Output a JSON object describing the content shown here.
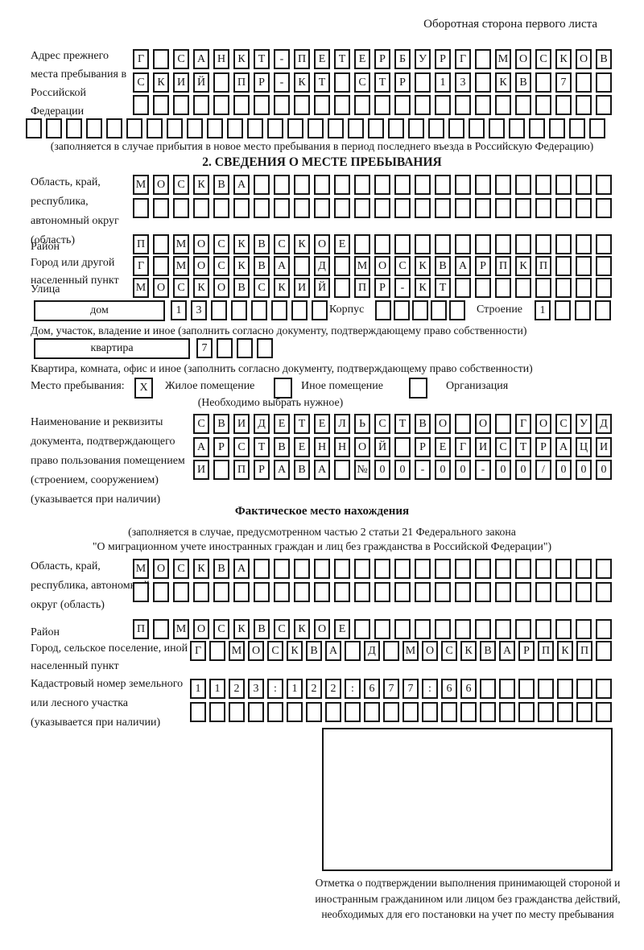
{
  "colors": {
    "ink": "#161616",
    "paper": "#ffffff"
  },
  "page": {
    "header_note": "Оборотная сторона первого листа"
  },
  "prev_address": {
    "label": "Адрес прежнего места пребывания в Российской Федерации",
    "rows": [
      "Г САНКТ-ПЕТЕРБУРГ МОСКОВ",
      "СКИЙ ПР-КТ СТР 13 КВ 7",
      ""
    ],
    "overflow_row": "",
    "note": "(заполняется в случае прибытия в новое место пребывания в период последнего въезда в Российскую Федерацию)"
  },
  "section2": {
    "title": "2. СВЕДЕНИЯ О МЕСТЕ ПРЕБЫВАНИЯ",
    "region": {
      "label": "Область, край, республика, автономный округ (область)",
      "rows": [
        "МОСКВА",
        ""
      ]
    },
    "district": {
      "label": "Район",
      "value": "П МОСКВСКОЕ"
    },
    "city": {
      "label": "Город или другой населенный пункт",
      "value": "Г МОСКВА Д МОСКВАРПКП"
    },
    "street": {
      "label": "Улица",
      "value": "МОСКОВСКИЙ ПР-КТ"
    },
    "house": {
      "box_label": "дом",
      "value": "13",
      "korpus_label": "Корпус",
      "korpus_value": "",
      "stroenie_label": "Строение",
      "stroenie_value": "1",
      "note": "Дом, участок, владение и иное (заполнить согласно документу, подтверждающему право собственности)"
    },
    "apartment": {
      "box_label": "квартира",
      "value": "7",
      "note": "Квартира, комната, офис и иное (заполнить согласно документу, подтверждающему право собственности)"
    },
    "stay_type": {
      "label": "Место пребывания:",
      "options": [
        {
          "label": "Жилое помещение",
          "mark": "X"
        },
        {
          "label": "Иное помещение",
          "mark": ""
        },
        {
          "label": "Организация",
          "mark": ""
        }
      ],
      "note": "(Необходимо выбрать нужное)"
    },
    "document": {
      "label": "Наименование и реквизиты документа, подтверждающего право пользования помещением (строением, сооружением) (указывается при наличии)",
      "rows": [
        "СВИДЕТЕЛЬСТВО О ГОСУД",
        "АРСТВЕННОЙ РЕГИСТРАЦИ",
        "И ПРАВА №00-00-00/000"
      ]
    }
  },
  "actual_location": {
    "title": "Фактическое место нахождения",
    "note_line1": "(заполняется в случае, предусмотренном частью 2 статьи 21 Федерального закона",
    "note_line2": "\"О миграционном учете иностранных граждан и лиц без гражданства в Российской Федерации\")",
    "region": {
      "label": "Область, край, республика, автономный округ (область)",
      "rows": [
        "МОСКВА",
        ""
      ]
    },
    "district": {
      "label": "Район",
      "value": "П МОСКВСКОЕ"
    },
    "city": {
      "label": "Город, сельское поселение, иной населенный пункт",
      "value": "Г МОСКВА Д МОСКВАРПКП"
    },
    "cadastral": {
      "label": "Кадастровый номер земельного или лесного участка (указывается при наличии)",
      "rows": [
        "1123:122:677:66",
        ""
      ]
    }
  },
  "confirmation": {
    "caption": "Отметка о подтверждении выполнения принимающей стороной и иностранным гражданином или лицом без гражданства действий, необходимых для его постановки на учет по месту пребывания"
  }
}
